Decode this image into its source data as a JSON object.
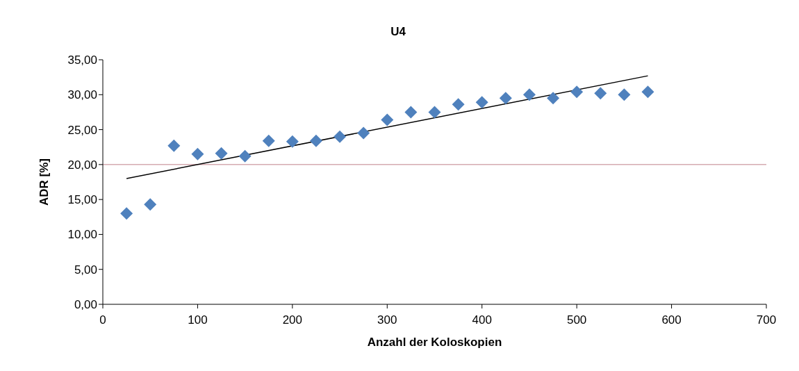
{
  "chart_data": {
    "type": "scatter",
    "title": "U4",
    "xlabel": "Anzahl der Koloskopien",
    "ylabel": "ADR [%]",
    "x": [
      25,
      50,
      75,
      100,
      125,
      150,
      175,
      200,
      225,
      250,
      275,
      300,
      325,
      350,
      375,
      400,
      425,
      450,
      475,
      500,
      525,
      550,
      575
    ],
    "series": [
      {
        "color": "#4f81bd",
        "values": [
          13.0,
          14.3,
          22.7,
          21.5,
          21.6,
          21.2,
          23.4,
          23.3,
          23.4,
          24.0,
          24.5,
          26.4,
          27.5,
          27.5,
          28.6,
          28.9,
          29.5,
          30.0,
          29.5,
          30.4,
          30.2,
          30.0,
          30.4
        ]
      },
      {
        "type": "line",
        "color": "#000000",
        "marker": "none",
        "x": [
          25,
          575
        ],
        "values": [
          18.0,
          32.7
        ]
      }
    ],
    "marker": "diamond",
    "grid": false,
    "ref_lines": [
      {
        "axis": "y",
        "value": 20,
        "color": "#c0808a"
      }
    ],
    "xlim": [
      0,
      700
    ],
    "xticks": [
      0,
      100,
      200,
      300,
      400,
      500,
      600,
      700
    ],
    "ylim": [
      0,
      35
    ],
    "yticks": [
      {
        "value": 0,
        "label": "0,00"
      },
      {
        "value": 5,
        "label": "5,00"
      },
      {
        "value": 10,
        "label": "10,00"
      },
      {
        "value": 15,
        "label": "15,00"
      },
      {
        "value": 20,
        "label": "20,00"
      },
      {
        "value": 25,
        "label": "25,00"
      },
      {
        "value": 30,
        "label": "30,00"
      },
      {
        "value": 35,
        "label": "35,00"
      }
    ]
  }
}
